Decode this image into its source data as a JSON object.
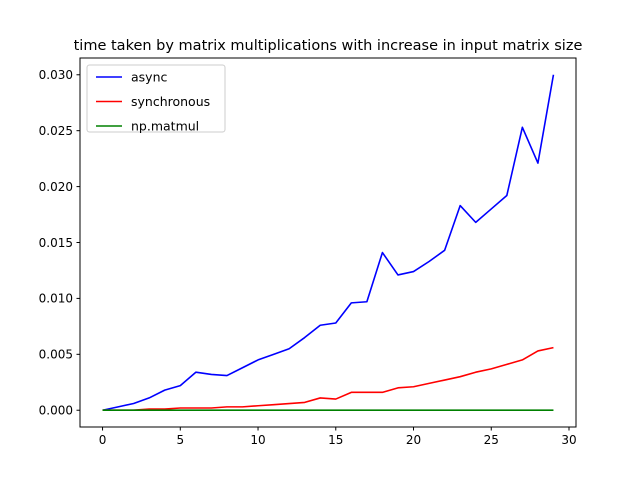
{
  "chart_data": {
    "type": "line",
    "title": "time taken by matrix multiplications with increase in input matrix size",
    "xlabel": "",
    "ylabel": "",
    "xlim": [
      -1.45,
      30.45
    ],
    "ylim": [
      -0.0015,
      0.0315
    ],
    "x_ticks": [
      0,
      5,
      10,
      15,
      20,
      25,
      30
    ],
    "y_ticks": [
      0.0,
      0.005,
      0.01,
      0.015,
      0.02,
      0.025,
      0.03
    ],
    "y_tick_labels": [
      "0.000",
      "0.005",
      "0.010",
      "0.015",
      "0.020",
      "0.025",
      "0.030"
    ],
    "grid": false,
    "legend_position": "top-left",
    "x": [
      0,
      1,
      2,
      3,
      4,
      5,
      6,
      7,
      8,
      9,
      10,
      11,
      12,
      13,
      14,
      15,
      16,
      17,
      18,
      19,
      20,
      21,
      22,
      23,
      24,
      25,
      26,
      27,
      28,
      29
    ],
    "series": [
      {
        "name": "async",
        "color": "#0000ff",
        "values": [
          0.0,
          0.0003,
          0.0006,
          0.0011,
          0.0018,
          0.0022,
          0.0034,
          0.0032,
          0.0031,
          0.0038,
          0.0045,
          0.005,
          0.0055,
          0.0065,
          0.0076,
          0.0078,
          0.0096,
          0.0097,
          0.0141,
          0.0121,
          0.0124,
          0.0133,
          0.0143,
          0.0183,
          0.0168,
          0.018,
          0.0192,
          0.0253,
          0.0221,
          0.03
        ]
      },
      {
        "name": "synchronous",
        "color": "#ff0000",
        "values": [
          0.0,
          0.0,
          0.0,
          0.0001,
          0.0001,
          0.0002,
          0.0002,
          0.0002,
          0.0003,
          0.0003,
          0.0004,
          0.0005,
          0.0006,
          0.0007,
          0.0011,
          0.001,
          0.0016,
          0.0016,
          0.0016,
          0.002,
          0.0021,
          0.0024,
          0.0027,
          0.003,
          0.0034,
          0.0037,
          0.0041,
          0.0045,
          0.0053,
          0.0056
        ]
      },
      {
        "name": "np.matmul",
        "color": "#008000",
        "values": [
          0.0,
          0.0,
          0.0,
          0.0,
          0.0,
          0.0,
          0.0,
          0.0,
          0.0,
          0.0,
          0.0,
          0.0,
          0.0,
          0.0,
          0.0,
          0.0,
          0.0,
          0.0,
          0.0,
          0.0,
          0.0,
          0.0,
          0.0,
          0.0,
          0.0,
          0.0,
          0.0,
          0.0,
          0.0,
          0.0
        ]
      }
    ]
  }
}
